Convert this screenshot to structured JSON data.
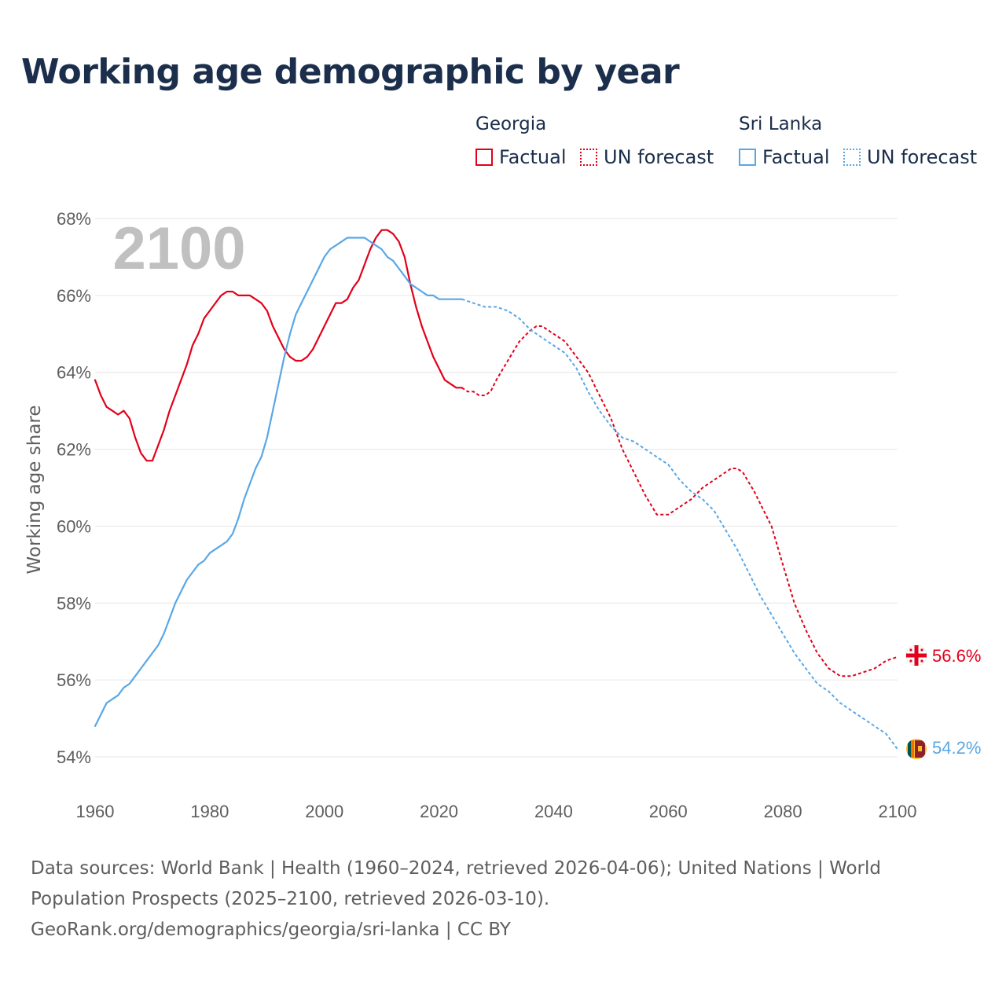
{
  "title": "Working age demographic by year",
  "legend": {
    "groups": [
      {
        "country": "Georgia",
        "factual_label": "Factual",
        "forecast_label": "UN forecast",
        "color": "#e2001a"
      },
      {
        "country": "Sri Lanka",
        "factual_label": "Factual",
        "forecast_label": "UN forecast",
        "color": "#5aa7e6"
      }
    ]
  },
  "year_watermark": "2100",
  "end_labels": {
    "georgia": "56.6%",
    "sri_lanka": "54.2%"
  },
  "icons": {
    "georgia": "georgia-flag-icon",
    "sri_lanka": "sri-lanka-flag-icon"
  },
  "footer": {
    "sources": "Data sources: World Bank | Health (1960–2024, retrieved 2026-04-06); United Nations | World Population Prospects (2025–2100, retrieved 2026-03-10).",
    "credit": "GeoRank.org/demographics/georgia/sri-lanka | CC BY"
  },
  "chart_data": {
    "type": "line",
    "title": "Working age demographic by year",
    "xlabel": "",
    "ylabel": "Working age share",
    "xlim": [
      1960,
      2100
    ],
    "ylim": [
      54,
      68
    ],
    "x_ticks": [
      1960,
      1980,
      2000,
      2020,
      2040,
      2060,
      2080,
      2100
    ],
    "x_tick_labels": [
      "1960",
      "1980",
      "2000",
      "2020",
      "2040",
      "2060",
      "2080",
      "2100"
    ],
    "y_ticks": [
      54,
      56,
      58,
      60,
      62,
      64,
      66,
      68
    ],
    "y_tick_labels": [
      "54%",
      "56%",
      "58%",
      "60%",
      "62%",
      "64%",
      "66%",
      "68%"
    ],
    "grid": true,
    "forecast_start": 2024,
    "series": [
      {
        "name": "Georgia",
        "color": "#e2001a",
        "points": [
          [
            1960,
            63.8
          ],
          [
            1961,
            63.4
          ],
          [
            1962,
            63.1
          ],
          [
            1963,
            63.0
          ],
          [
            1964,
            62.9
          ],
          [
            1965,
            63.0
          ],
          [
            1966,
            62.8
          ],
          [
            1967,
            62.3
          ],
          [
            1968,
            61.9
          ],
          [
            1969,
            61.7
          ],
          [
            1970,
            61.7
          ],
          [
            1971,
            62.1
          ],
          [
            1972,
            62.5
          ],
          [
            1973,
            63.0
          ],
          [
            1974,
            63.4
          ],
          [
            1975,
            63.8
          ],
          [
            1976,
            64.2
          ],
          [
            1977,
            64.7
          ],
          [
            1978,
            65.0
          ],
          [
            1979,
            65.4
          ],
          [
            1980,
            65.6
          ],
          [
            1981,
            65.8
          ],
          [
            1982,
            66.0
          ],
          [
            1983,
            66.1
          ],
          [
            1984,
            66.1
          ],
          [
            1985,
            66.0
          ],
          [
            1986,
            66.0
          ],
          [
            1987,
            66.0
          ],
          [
            1988,
            65.9
          ],
          [
            1989,
            65.8
          ],
          [
            1990,
            65.6
          ],
          [
            1991,
            65.2
          ],
          [
            1992,
            64.9
          ],
          [
            1993,
            64.6
          ],
          [
            1994,
            64.4
          ],
          [
            1995,
            64.3
          ],
          [
            1996,
            64.3
          ],
          [
            1997,
            64.4
          ],
          [
            1998,
            64.6
          ],
          [
            1999,
            64.9
          ],
          [
            2000,
            65.2
          ],
          [
            2001,
            65.5
          ],
          [
            2002,
            65.8
          ],
          [
            2003,
            65.8
          ],
          [
            2004,
            65.9
          ],
          [
            2005,
            66.2
          ],
          [
            2006,
            66.4
          ],
          [
            2007,
            66.8
          ],
          [
            2008,
            67.2
          ],
          [
            2009,
            67.5
          ],
          [
            2010,
            67.7
          ],
          [
            2011,
            67.7
          ],
          [
            2012,
            67.6
          ],
          [
            2013,
            67.4
          ],
          [
            2014,
            67.0
          ],
          [
            2015,
            66.3
          ],
          [
            2016,
            65.7
          ],
          [
            2017,
            65.2
          ],
          [
            2018,
            64.8
          ],
          [
            2019,
            64.4
          ],
          [
            2020,
            64.1
          ],
          [
            2021,
            63.8
          ],
          [
            2022,
            63.7
          ],
          [
            2023,
            63.6
          ],
          [
            2024,
            63.6
          ],
          [
            2025,
            63.5
          ],
          [
            2026,
            63.5
          ],
          [
            2027,
            63.4
          ],
          [
            2028,
            63.4
          ],
          [
            2029,
            63.5
          ],
          [
            2030,
            63.8
          ],
          [
            2032,
            64.3
          ],
          [
            2034,
            64.8
          ],
          [
            2036,
            65.1
          ],
          [
            2037,
            65.2
          ],
          [
            2038,
            65.2
          ],
          [
            2040,
            65.0
          ],
          [
            2042,
            64.8
          ],
          [
            2044,
            64.4
          ],
          [
            2046,
            64.0
          ],
          [
            2048,
            63.4
          ],
          [
            2050,
            62.8
          ],
          [
            2052,
            62.0
          ],
          [
            2054,
            61.4
          ],
          [
            2056,
            60.8
          ],
          [
            2058,
            60.3
          ],
          [
            2060,
            60.3
          ],
          [
            2062,
            60.5
          ],
          [
            2064,
            60.7
          ],
          [
            2066,
            61.0
          ],
          [
            2068,
            61.2
          ],
          [
            2070,
            61.4
          ],
          [
            2071,
            61.5
          ],
          [
            2072,
            61.5
          ],
          [
            2073,
            61.4
          ],
          [
            2075,
            60.9
          ],
          [
            2077,
            60.3
          ],
          [
            2078,
            60.0
          ],
          [
            2080,
            59.0
          ],
          [
            2082,
            58.0
          ],
          [
            2084,
            57.3
          ],
          [
            2086,
            56.7
          ],
          [
            2088,
            56.3
          ],
          [
            2090,
            56.1
          ],
          [
            2092,
            56.1
          ],
          [
            2094,
            56.2
          ],
          [
            2096,
            56.3
          ],
          [
            2098,
            56.5
          ],
          [
            2100,
            56.6
          ]
        ]
      },
      {
        "name": "Sri Lanka",
        "color": "#5aa7e6",
        "points": [
          [
            1960,
            54.8
          ],
          [
            1961,
            55.1
          ],
          [
            1962,
            55.4
          ],
          [
            1963,
            55.5
          ],
          [
            1964,
            55.6
          ],
          [
            1965,
            55.8
          ],
          [
            1966,
            55.9
          ],
          [
            1967,
            56.1
          ],
          [
            1968,
            56.3
          ],
          [
            1969,
            56.5
          ],
          [
            1970,
            56.7
          ],
          [
            1971,
            56.9
          ],
          [
            1972,
            57.2
          ],
          [
            1973,
            57.6
          ],
          [
            1974,
            58.0
          ],
          [
            1975,
            58.3
          ],
          [
            1976,
            58.6
          ],
          [
            1977,
            58.8
          ],
          [
            1978,
            59.0
          ],
          [
            1979,
            59.1
          ],
          [
            1980,
            59.3
          ],
          [
            1981,
            59.4
          ],
          [
            1982,
            59.5
          ],
          [
            1983,
            59.6
          ],
          [
            1984,
            59.8
          ],
          [
            1985,
            60.2
          ],
          [
            1986,
            60.7
          ],
          [
            1987,
            61.1
          ],
          [
            1988,
            61.5
          ],
          [
            1989,
            61.8
          ],
          [
            1990,
            62.3
          ],
          [
            1991,
            63.0
          ],
          [
            1992,
            63.7
          ],
          [
            1993,
            64.4
          ],
          [
            1994,
            65.0
          ],
          [
            1995,
            65.5
          ],
          [
            1996,
            65.8
          ],
          [
            1997,
            66.1
          ],
          [
            1998,
            66.4
          ],
          [
            1999,
            66.7
          ],
          [
            2000,
            67.0
          ],
          [
            2001,
            67.2
          ],
          [
            2002,
            67.3
          ],
          [
            2003,
            67.4
          ],
          [
            2004,
            67.5
          ],
          [
            2005,
            67.5
          ],
          [
            2006,
            67.5
          ],
          [
            2007,
            67.5
          ],
          [
            2008,
            67.4
          ],
          [
            2009,
            67.3
          ],
          [
            2010,
            67.2
          ],
          [
            2011,
            67.0
          ],
          [
            2012,
            66.9
          ],
          [
            2013,
            66.7
          ],
          [
            2014,
            66.5
          ],
          [
            2015,
            66.3
          ],
          [
            2016,
            66.2
          ],
          [
            2017,
            66.1
          ],
          [
            2018,
            66.0
          ],
          [
            2019,
            66.0
          ],
          [
            2020,
            65.9
          ],
          [
            2021,
            65.9
          ],
          [
            2022,
            65.9
          ],
          [
            2023,
            65.9
          ],
          [
            2024,
            65.9
          ],
          [
            2026,
            65.8
          ],
          [
            2028,
            65.7
          ],
          [
            2030,
            65.7
          ],
          [
            2032,
            65.6
          ],
          [
            2034,
            65.4
          ],
          [
            2036,
            65.1
          ],
          [
            2038,
            64.9
          ],
          [
            2040,
            64.7
          ],
          [
            2042,
            64.5
          ],
          [
            2044,
            64.1
          ],
          [
            2046,
            63.5
          ],
          [
            2048,
            63.0
          ],
          [
            2050,
            62.6
          ],
          [
            2052,
            62.3
          ],
          [
            2054,
            62.2
          ],
          [
            2056,
            62.0
          ],
          [
            2058,
            61.8
          ],
          [
            2060,
            61.6
          ],
          [
            2062,
            61.2
          ],
          [
            2064,
            60.9
          ],
          [
            2066,
            60.7
          ],
          [
            2068,
            60.4
          ],
          [
            2070,
            59.9
          ],
          [
            2072,
            59.4
          ],
          [
            2074,
            58.8
          ],
          [
            2076,
            58.2
          ],
          [
            2078,
            57.7
          ],
          [
            2080,
            57.2
          ],
          [
            2082,
            56.7
          ],
          [
            2084,
            56.3
          ],
          [
            2086,
            55.9
          ],
          [
            2088,
            55.7
          ],
          [
            2090,
            55.4
          ],
          [
            2092,
            55.2
          ],
          [
            2094,
            55.0
          ],
          [
            2096,
            54.8
          ],
          [
            2098,
            54.6
          ],
          [
            2099,
            54.4
          ],
          [
            2100,
            54.2
          ]
        ]
      }
    ]
  }
}
